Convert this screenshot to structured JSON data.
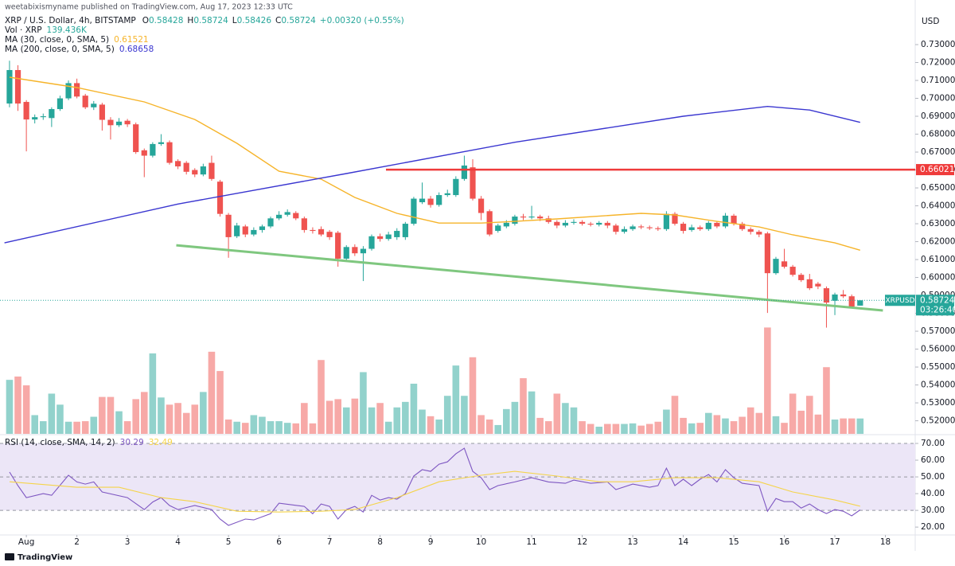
{
  "publisher": "weetabixismyname published on TradingView.com, Aug 17, 2023 12:33 UTC",
  "brand": "TradingView",
  "chart_data": [
    {
      "type": "candlestick",
      "title": "XRP / U.S. Dollar, 4h, BITSTAMP",
      "ohlc_labels": [
        "O",
        "H",
        "L",
        "C"
      ],
      "change": "+0.00320 (+0.55%)",
      "volume_name": "Vol · XRP",
      "volume_label": "139.436K",
      "axis_unit": "USD",
      "symbol_tag": "XRPUSD",
      "countdown": "03:26:40",
      "up_color": "#26a69a",
      "down_color": "#ef5350",
      "volume_up_color": "#92d2cc",
      "volume_down_color": "#f7a9a7",
      "open": [
        0.6971,
        0.7158,
        0.698,
        0.6882,
        0.6895,
        0.689,
        0.694,
        0.7,
        0.7085,
        0.7015,
        0.695,
        0.6965,
        0.688,
        0.685,
        0.6875,
        0.6855,
        0.671,
        0.668,
        0.6745,
        0.6755,
        0.665,
        0.664,
        0.66,
        0.6575,
        0.664,
        0.6535,
        0.635,
        0.623,
        0.6285,
        0.624,
        0.6265,
        0.6285,
        0.633,
        0.635,
        0.636,
        0.633,
        0.6265,
        0.627,
        0.6255,
        0.625,
        0.6105,
        0.617,
        0.6135,
        0.616,
        0.623,
        0.6215,
        0.6225,
        0.6225,
        0.63,
        0.642,
        0.644,
        0.6405,
        0.646,
        0.646,
        0.655,
        0.6615,
        0.644,
        0.637,
        0.626,
        0.6285,
        0.63,
        0.634,
        0.6335,
        0.634,
        0.633,
        0.631,
        0.629,
        0.6305,
        0.631,
        0.63,
        0.6295,
        0.6305,
        0.629,
        0.6255,
        0.627,
        0.6285,
        0.628,
        0.6275,
        0.627,
        0.6355,
        0.63,
        0.6265,
        0.628,
        0.627,
        0.6305,
        0.6285,
        0.6345,
        0.63,
        0.627,
        0.6255,
        0.6246,
        0.6024,
        0.609,
        0.606,
        0.6015,
        0.599,
        0.5965,
        0.594,
        0.587,
        0.5905,
        0.5895,
        0.58428
      ],
      "high": [
        0.721,
        0.7185,
        0.699,
        0.691,
        0.6915,
        0.695,
        0.7015,
        0.71,
        0.711,
        0.7025,
        0.6985,
        0.6975,
        0.6895,
        0.689,
        0.6885,
        0.6865,
        0.672,
        0.6755,
        0.68,
        0.6765,
        0.666,
        0.665,
        0.661,
        0.6635,
        0.668,
        0.6545,
        0.636,
        0.6305,
        0.6295,
        0.628,
        0.6295,
        0.634,
        0.637,
        0.638,
        0.637,
        0.634,
        0.628,
        0.6285,
        0.6265,
        0.626,
        0.618,
        0.6185,
        0.6175,
        0.624,
        0.6245,
        0.6255,
        0.6275,
        0.631,
        0.645,
        0.653,
        0.6455,
        0.6475,
        0.649,
        0.6565,
        0.668,
        0.666,
        0.6455,
        0.638,
        0.63,
        0.632,
        0.635,
        0.6355,
        0.64,
        0.635,
        0.6345,
        0.632,
        0.632,
        0.6325,
        0.632,
        0.631,
        0.6315,
        0.6315,
        0.63,
        0.6285,
        0.6295,
        0.6295,
        0.629,
        0.6285,
        0.637,
        0.6365,
        0.631,
        0.6295,
        0.629,
        0.6315,
        0.6315,
        0.636,
        0.6355,
        0.631,
        0.628,
        0.6265,
        0.6255,
        0.6115,
        0.616,
        0.607,
        0.6025,
        0.602,
        0.5975,
        0.595,
        0.5915,
        0.593,
        0.5905,
        0.58724
      ],
      "low": [
        0.695,
        0.693,
        0.6704,
        0.686,
        0.688,
        0.684,
        0.693,
        0.699,
        0.7,
        0.694,
        0.6935,
        0.682,
        0.677,
        0.684,
        0.684,
        0.669,
        0.656,
        0.667,
        0.6735,
        0.663,
        0.6605,
        0.6575,
        0.656,
        0.6565,
        0.654,
        0.634,
        0.611,
        0.622,
        0.6225,
        0.623,
        0.625,
        0.6275,
        0.632,
        0.634,
        0.632,
        0.625,
        0.6245,
        0.623,
        0.621,
        0.606,
        0.6095,
        0.612,
        0.598,
        0.615,
        0.62,
        0.6205,
        0.621,
        0.621,
        0.629,
        0.641,
        0.639,
        0.6395,
        0.645,
        0.645,
        0.654,
        0.643,
        0.632,
        0.623,
        0.625,
        0.6275,
        0.629,
        0.632,
        0.6325,
        0.6315,
        0.63,
        0.6275,
        0.628,
        0.6295,
        0.629,
        0.6285,
        0.6285,
        0.6275,
        0.624,
        0.6245,
        0.626,
        0.627,
        0.6265,
        0.626,
        0.626,
        0.629,
        0.6245,
        0.6255,
        0.626,
        0.626,
        0.6275,
        0.6275,
        0.629,
        0.626,
        0.624,
        0.6225,
        0.5802,
        0.6015,
        0.605,
        0.6005,
        0.5975,
        0.593,
        0.5935,
        0.572,
        0.579,
        0.5885,
        0.583,
        0.58426
      ],
      "close": [
        0.7158,
        0.6971,
        0.6882,
        0.6895,
        0.69,
        0.694,
        0.7,
        0.7085,
        0.701,
        0.695,
        0.697,
        0.688,
        0.685,
        0.687,
        0.6855,
        0.67,
        0.668,
        0.6745,
        0.6755,
        0.664,
        0.662,
        0.659,
        0.6575,
        0.662,
        0.655,
        0.6355,
        0.6225,
        0.629,
        0.624,
        0.6265,
        0.6285,
        0.633,
        0.635,
        0.6365,
        0.633,
        0.6265,
        0.626,
        0.624,
        0.6225,
        0.6105,
        0.617,
        0.6135,
        0.616,
        0.623,
        0.6215,
        0.624,
        0.626,
        0.63,
        0.644,
        0.644,
        0.6405,
        0.646,
        0.647,
        0.655,
        0.6625,
        0.644,
        0.636,
        0.624,
        0.629,
        0.6305,
        0.634,
        0.6335,
        0.634,
        0.633,
        0.631,
        0.629,
        0.6305,
        0.631,
        0.63,
        0.6295,
        0.6305,
        0.629,
        0.6255,
        0.627,
        0.6285,
        0.628,
        0.6275,
        0.627,
        0.6355,
        0.63,
        0.626,
        0.628,
        0.627,
        0.6305,
        0.6285,
        0.6345,
        0.63,
        0.627,
        0.6255,
        0.624,
        0.6024,
        0.6104,
        0.606,
        0.6015,
        0.5985,
        0.594,
        0.595,
        0.586,
        0.5905,
        0.5895,
        0.5838,
        0.58724
      ],
      "volume": [
        490,
        520,
        440,
        170,
        115,
        365,
        265,
        110,
        110,
        115,
        155,
        335,
        335,
        205,
        115,
        315,
        380,
        730,
        330,
        265,
        280,
        190,
        265,
        380,
        745,
        570,
        130,
        110,
        100,
        170,
        155,
        115,
        115,
        100,
        95,
        280,
        95,
        670,
        300,
        315,
        240,
        320,
        560,
        240,
        280,
        110,
        240,
        290,
        455,
        220,
        160,
        130,
        345,
        620,
        345,
        695,
        170,
        130,
        80,
        225,
        290,
        505,
        385,
        145,
        115,
        365,
        280,
        240,
        115,
        90,
        65,
        90,
        90,
        90,
        95,
        75,
        90,
        110,
        220,
        345,
        145,
        95,
        100,
        190,
        170,
        140,
        115,
        155,
        240,
        190,
        965,
        160,
        100,
        365,
        210,
        345,
        175,
        605,
        130,
        140,
        140,
        139.436
      ],
      "vlim": [
        0,
        1300
      ],
      "xlim": [
        -1.13,
        107.54
      ],
      "xticks": [
        {
          "value": 2,
          "label": "Aug"
        },
        {
          "value": 8,
          "label": "2"
        },
        {
          "value": 14,
          "label": "3"
        },
        {
          "value": 20,
          "label": "4"
        },
        {
          "value": 26,
          "label": "5"
        },
        {
          "value": 32,
          "label": "6"
        },
        {
          "value": 38,
          "label": "7"
        },
        {
          "value": 44,
          "label": "8"
        },
        {
          "value": 50,
          "label": "9"
        },
        {
          "value": 56,
          "label": "10"
        },
        {
          "value": 62,
          "label": "11"
        },
        {
          "value": 68,
          "label": "12"
        },
        {
          "value": 74,
          "label": "13"
        },
        {
          "value": 80,
          "label": "14"
        },
        {
          "value": 86,
          "label": "15"
        },
        {
          "value": 92,
          "label": "16"
        },
        {
          "value": 98,
          "label": "17"
        },
        {
          "value": 104,
          "label": "18"
        }
      ],
      "ylim": [
        0.5127,
        0.7549
      ],
      "yticks": [
        {
          "value": 0.73,
          "label": "0.73000"
        },
        {
          "value": 0.72,
          "label": "0.72000"
        },
        {
          "value": 0.71,
          "label": "0.71000"
        },
        {
          "value": 0.7,
          "label": "0.70000"
        },
        {
          "value": 0.69,
          "label": "0.69000"
        },
        {
          "value": 0.68,
          "label": "0.68000"
        },
        {
          "value": 0.67,
          "label": "0.67000"
        },
        {
          "value": 0.66,
          "label": "0.66000"
        },
        {
          "value": 0.65,
          "label": "0.65000"
        },
        {
          "value": 0.64,
          "label": "0.64000"
        },
        {
          "value": 0.63,
          "label": "0.63000"
        },
        {
          "value": 0.62,
          "label": "0.62000"
        },
        {
          "value": 0.61,
          "label": "0.61000"
        },
        {
          "value": 0.6,
          "label": "0.60000"
        },
        {
          "value": 0.59,
          "label": "0.59000"
        },
        {
          "value": 0.58,
          "label": "0.58000"
        },
        {
          "value": 0.57,
          "label": "0.57000"
        },
        {
          "value": 0.56,
          "label": "0.56000"
        },
        {
          "value": 0.55,
          "label": "0.55000"
        },
        {
          "value": 0.54,
          "label": "0.54000"
        },
        {
          "value": 0.53,
          "label": "0.53000"
        },
        {
          "value": 0.52,
          "label": "0.52000"
        }
      ],
      "series": [
        {
          "name": "MA (30, close, 0, SMA, 5)",
          "color": "#f6b42a",
          "x": [
            0,
            8,
            16,
            22,
            27,
            32,
            37,
            41,
            46,
            51,
            56,
            60,
            65,
            75,
            79,
            84,
            89,
            93,
            98,
            101
          ],
          "values": [
            0.7118,
            0.706,
            0.698,
            0.6882,
            0.6749,
            0.6593,
            0.6549,
            0.6447,
            0.6358,
            0.6304,
            0.6304,
            0.6313,
            0.6327,
            0.6358,
            0.6349,
            0.6313,
            0.6282,
            0.6238,
            0.6193,
            0.61521
          ]
        },
        {
          "name": "MA (200, close, 0, SMA, 5)",
          "color": "#3a36d0",
          "x": [
            -0.6,
            20,
            40,
            60,
            80,
            90,
            95,
            101
          ],
          "values": [
            0.6193,
            0.641,
            0.658,
            0.6755,
            0.69,
            0.6955,
            0.6935,
            0.68658
          ]
        }
      ],
      "trendline": {
        "color": "#7fc77f",
        "x": [
          19.8,
          103.7
        ],
        "values": [
          0.618,
          0.5816
        ]
      },
      "hline": {
        "value": 0.66021,
        "label": "0.66021",
        "color": "#ef3b3b",
        "x_start": 44.7
      }
    },
    {
      "type": "line",
      "title": "RSI (14, close, SMA, 14, 2)",
      "ylim": [
        15.3,
        74.3
      ],
      "yticks": [
        {
          "value": 70,
          "label": "70.00"
        },
        {
          "value": 60,
          "label": "60.00"
        },
        {
          "value": 50,
          "label": "50.00"
        },
        {
          "value": 40,
          "label": "40.00"
        },
        {
          "value": 30,
          "label": "30.00"
        },
        {
          "value": 20,
          "label": "20.00"
        }
      ],
      "band": [
        30,
        70
      ],
      "band_color": "#ece6f7",
      "levels": [
        30,
        50,
        70
      ],
      "series": [
        {
          "name": "RSI",
          "color": "#7e57c2",
          "x": [
            0,
            1,
            2,
            4,
            5,
            7,
            8,
            9,
            10,
            11,
            14,
            16,
            17,
            18,
            19,
            20,
            22,
            24,
            25,
            26,
            28,
            29,
            31,
            32,
            34,
            35,
            36,
            37,
            38,
            39,
            40,
            41,
            42,
            43,
            44,
            45,
            46,
            47,
            48,
            49,
            50,
            51,
            52,
            53,
            54,
            55,
            56,
            57,
            58,
            60,
            62,
            64,
            66,
            67,
            69,
            71,
            72,
            74,
            76,
            77,
            78,
            79,
            80,
            81,
            82,
            83,
            84,
            85,
            86,
            87,
            89,
            90,
            91,
            92,
            93,
            94,
            95,
            96,
            97,
            98,
            99,
            100,
            101
          ],
          "values": [
            52.9,
            44.8,
            37.6,
            40,
            39,
            51,
            47,
            45.7,
            47,
            41,
            37.6,
            30.5,
            35,
            37.6,
            32.9,
            30.5,
            32.9,
            30.5,
            24.8,
            21,
            24.8,
            24.3,
            28,
            34.3,
            33,
            32.4,
            28,
            33.8,
            32.4,
            24.8,
            30.5,
            32.4,
            29,
            39,
            36.2,
            37.6,
            36.7,
            40,
            50.5,
            54.3,
            53.3,
            57.6,
            59,
            63.8,
            67.1,
            53.3,
            49.5,
            42.4,
            44.8,
            47,
            49.5,
            47,
            46.2,
            48.1,
            46.2,
            47,
            42.4,
            45.7,
            43.8,
            44.8,
            55.2,
            44.8,
            48.6,
            44.8,
            48.6,
            51.4,
            47,
            54.3,
            49.5,
            46.2,
            44.8,
            29.5,
            37.1,
            35.2,
            35.2,
            31.4,
            33.8,
            30.5,
            28.1,
            30.5,
            29.5,
            26.7,
            30.29
          ]
        },
        {
          "name": "RSI MA",
          "color": "#f5d44a",
          "x": [
            0,
            8,
            13,
            18,
            22,
            27,
            32,
            37,
            41,
            46,
            51,
            56,
            60,
            65,
            70,
            74,
            79,
            84,
            89,
            93,
            98,
            101
          ],
          "values": [
            47.1,
            43.8,
            43.8,
            37.6,
            35.2,
            29.5,
            29,
            29.5,
            30.5,
            37.6,
            47.1,
            51,
            53.3,
            50.5,
            47.1,
            47.1,
            49.5,
            49.5,
            47.1,
            41,
            36.2,
            32.49
          ]
        }
      ]
    }
  ]
}
